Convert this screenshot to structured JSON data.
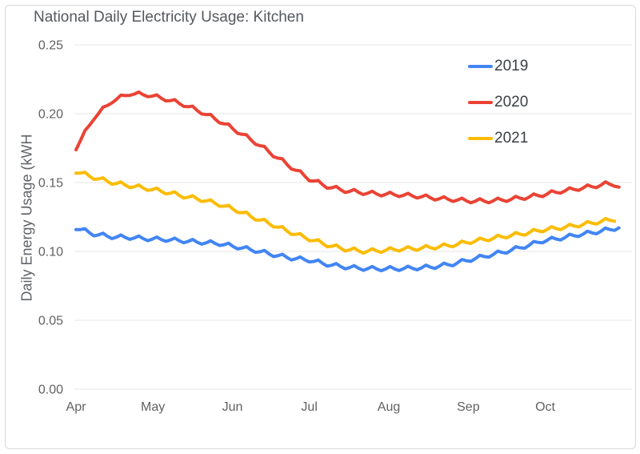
{
  "chart_data": {
    "type": "line",
    "title": "National Daily Electricity Usage: Kitchen",
    "xlabel": "",
    "ylabel": "Daily Energy Usage (kWH",
    "ylim": [
      0,
      0.25
    ],
    "y_tick_values": [
      0,
      0.05,
      0.1,
      0.15,
      0.2,
      0.25
    ],
    "y_tick_labels": [
      "0.00",
      "0.05",
      "0.10",
      "0.15",
      "0.20",
      "0.25"
    ],
    "x_unit": "days since Apr 1",
    "x_range_days": [
      0,
      213
    ],
    "x_ticks": [
      {
        "label": "Apr",
        "day": 0
      },
      {
        "label": "May",
        "day": 30
      },
      {
        "label": "Jun",
        "day": 61
      },
      {
        "label": "Jul",
        "day": 91
      },
      {
        "label": "Aug",
        "day": 122
      },
      {
        "label": "Sep",
        "day": 153
      },
      {
        "label": "Oct",
        "day": 183
      }
    ],
    "grid": "horizontal-only",
    "grid_color": "#e6e6e6",
    "legend_position": "top-right-overlay",
    "weekly_oscillation": {
      "period_days": 7,
      "amplitude_kwh": 0.0016
    },
    "series": [
      {
        "name": "2019",
        "color": "#4285F4",
        "points": [
          [
            0,
            0.117
          ],
          [
            7,
            0.1125
          ],
          [
            14,
            0.1105
          ],
          [
            21,
            0.11
          ],
          [
            28,
            0.109
          ],
          [
            35,
            0.1085
          ],
          [
            42,
            0.1075
          ],
          [
            49,
            0.1065
          ],
          [
            56,
            0.1055
          ],
          [
            63,
            0.103
          ],
          [
            70,
            0.1005
          ],
          [
            77,
            0.0975
          ],
          [
            84,
            0.095
          ],
          [
            91,
            0.0935
          ],
          [
            98,
            0.0905
          ],
          [
            105,
            0.0885
          ],
          [
            112,
            0.0875
          ],
          [
            119,
            0.0872
          ],
          [
            126,
            0.0873
          ],
          [
            133,
            0.0878
          ],
          [
            140,
            0.0888
          ],
          [
            147,
            0.0908
          ],
          [
            154,
            0.094
          ],
          [
            161,
            0.097
          ],
          [
            168,
            0.1
          ],
          [
            175,
            0.1035
          ],
          [
            182,
            0.1075
          ],
          [
            189,
            0.1095
          ],
          [
            196,
            0.112
          ],
          [
            203,
            0.114
          ],
          [
            210,
            0.1165
          ],
          [
            213,
            0.1175
          ]
        ]
      },
      {
        "name": "2020",
        "color": "#EA4335",
        "points": [
          [
            0,
            0.175
          ],
          [
            7,
            0.197
          ],
          [
            14,
            0.209
          ],
          [
            21,
            0.2145
          ],
          [
            28,
            0.2135
          ],
          [
            35,
            0.2105
          ],
          [
            42,
            0.2065
          ],
          [
            49,
            0.201
          ],
          [
            56,
            0.1945
          ],
          [
            63,
            0.187
          ],
          [
            70,
            0.179
          ],
          [
            77,
            0.17
          ],
          [
            84,
            0.161
          ],
          [
            91,
            0.1525
          ],
          [
            98,
            0.147
          ],
          [
            105,
            0.144
          ],
          [
            112,
            0.1425
          ],
          [
            119,
            0.1415
          ],
          [
            126,
            0.141
          ],
          [
            133,
            0.14
          ],
          [
            140,
            0.1385
          ],
          [
            147,
            0.1375
          ],
          [
            154,
            0.1365
          ],
          [
            161,
            0.1365
          ],
          [
            168,
            0.1375
          ],
          [
            175,
            0.139
          ],
          [
            182,
            0.141
          ],
          [
            189,
            0.1435
          ],
          [
            196,
            0.1455
          ],
          [
            203,
            0.1475
          ],
          [
            207,
            0.149
          ],
          [
            210,
            0.1485
          ],
          [
            213,
            0.1455
          ]
        ]
      },
      {
        "name": "2021",
        "color": "#FBBC04",
        "points": [
          [
            0,
            0.158
          ],
          [
            7,
            0.1535
          ],
          [
            14,
            0.15
          ],
          [
            21,
            0.1475
          ],
          [
            28,
            0.1455
          ],
          [
            35,
            0.143
          ],
          [
            42,
            0.14
          ],
          [
            49,
            0.1375
          ],
          [
            56,
            0.134
          ],
          [
            63,
            0.1295
          ],
          [
            70,
            0.124
          ],
          [
            77,
            0.119
          ],
          [
            84,
            0.1135
          ],
          [
            91,
            0.109
          ],
          [
            98,
            0.1045
          ],
          [
            105,
            0.1015
          ],
          [
            112,
            0.1
          ],
          [
            119,
            0.1005
          ],
          [
            126,
            0.1015
          ],
          [
            133,
            0.102
          ],
          [
            140,
            0.103
          ],
          [
            147,
            0.1045
          ],
          [
            154,
            0.107
          ],
          [
            161,
            0.109
          ],
          [
            168,
            0.111
          ],
          [
            175,
            0.113
          ],
          [
            182,
            0.1155
          ],
          [
            189,
            0.117
          ],
          [
            196,
            0.119
          ],
          [
            203,
            0.121
          ],
          [
            211,
            0.1235
          ]
        ]
      }
    ]
  }
}
